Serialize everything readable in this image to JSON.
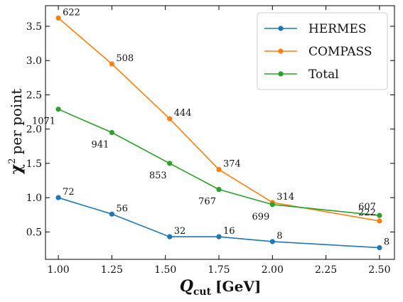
{
  "chart_data": {
    "type": "line",
    "xlabel_main": "Q",
    "xlabel_sub": "cut",
    "xlabel_unit": "[GeV]",
    "ylabel_main": "χ",
    "ylabel_sup": "2",
    "ylabel_rest": "per point",
    "xlim": [
      0.94,
      2.57
    ],
    "ylim": [
      0.1,
      3.8
    ],
    "xticks": [
      1.0,
      1.25,
      1.5,
      1.75,
      2.0,
      2.25,
      2.5
    ],
    "xtick_labels": [
      "1.00",
      "1.25",
      "1.50",
      "1.75",
      "2.00",
      "2.25",
      "2.50"
    ],
    "yticks": [
      0.5,
      1.0,
      1.5,
      2.0,
      2.5,
      3.0,
      3.5
    ],
    "ytick_labels": [
      "0.5",
      "1.0",
      "1.5",
      "2.0",
      "2.5",
      "3.0",
      "3.5"
    ],
    "legend_position": "top-right",
    "series": [
      {
        "name": "HERMES",
        "color": "#1f77b4",
        "x": [
          1.0,
          1.25,
          1.52,
          1.75,
          2.0,
          2.5
        ],
        "y": [
          1.0,
          0.76,
          0.43,
          0.43,
          0.36,
          0.27
        ],
        "labels": [
          "72",
          "56",
          "32",
          "16",
          "8",
          "8"
        ],
        "label_side": [
          "above-right",
          "above-right",
          "above-right",
          "above-right",
          "above-right",
          "above-right"
        ]
      },
      {
        "name": "COMPASS",
        "color": "#ff7f0e",
        "x": [
          1.0,
          1.25,
          1.52,
          1.75,
          2.0,
          2.5
        ],
        "y": [
          3.62,
          2.95,
          2.15,
          1.41,
          0.93,
          0.66
        ],
        "labels": [
          "622",
          "508",
          "444",
          "374",
          "314",
          "222"
        ],
        "label_side": [
          "above-right",
          "above-right",
          "above-right",
          "above-right",
          "above-right",
          "above-left"
        ]
      },
      {
        "name": "Total",
        "color": "#2ca02c",
        "x": [
          1.0,
          1.25,
          1.52,
          1.75,
          2.0,
          2.5
        ],
        "y": [
          2.29,
          1.95,
          1.5,
          1.12,
          0.9,
          0.74
        ],
        "labels": [
          "1071",
          "941",
          "853",
          "767",
          "699",
          "607"
        ],
        "label_side": [
          "below-left",
          "below-left",
          "below-left",
          "below-left",
          "below-left",
          "above-left"
        ]
      }
    ]
  }
}
